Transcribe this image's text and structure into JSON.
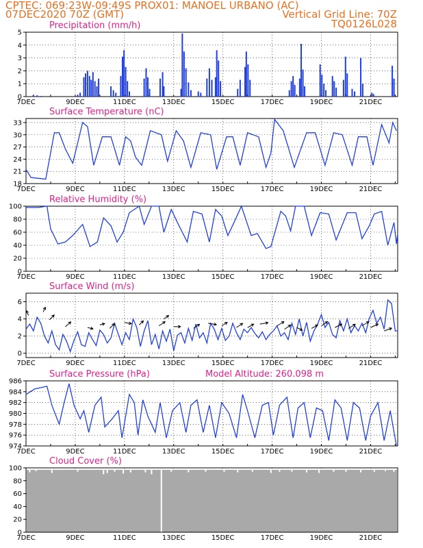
{
  "header": {
    "line1": "CPTEC:   069:23W-09:49S   PROX01: MANOEL URBANO (AC)",
    "line2_left": "07DEC2020 70Z (GMT)",
    "line2_right": "Vertical Grid Line: 70Z",
    "line3_right": "TQ0126L028"
  },
  "colors": {
    "header": "#e87020",
    "title": "#e0208a",
    "series": "#1f3fe0",
    "cloud": "#a9a9a9",
    "grid": "#000000"
  },
  "x_tick_labels": [
    "7DEC",
    "9DEC",
    "11DEC",
    "13DEC",
    "15DEC",
    "17DEC",
    "19DEC",
    "21DEC"
  ],
  "x_tick_days": [
    7,
    9,
    11,
    13,
    15,
    17,
    19,
    21
  ],
  "x_range_days": [
    7,
    22.1
  ],
  "chart_data": [
    {
      "type": "bar",
      "title": "Precipitation (mm/h)",
      "ylim": [
        0,
        5
      ],
      "yticks": [
        0,
        1,
        2,
        3,
        4,
        5
      ],
      "bars": [
        [
          7.3,
          0.15
        ],
        [
          7.45,
          0.1
        ],
        [
          7.6,
          0.05
        ],
        [
          9.1,
          0.15
        ],
        [
          9.2,
          0.3
        ],
        [
          9.35,
          1.5
        ],
        [
          9.42,
          1.8
        ],
        [
          9.5,
          2.0
        ],
        [
          9.58,
          1.6
        ],
        [
          9.65,
          1.3
        ],
        [
          9.72,
          1.9
        ],
        [
          9.8,
          1.2
        ],
        [
          9.88,
          0.8
        ],
        [
          9.95,
          1.4
        ],
        [
          10.45,
          0.8
        ],
        [
          10.55,
          0.5
        ],
        [
          10.65,
          0.3
        ],
        [
          10.85,
          1.6
        ],
        [
          10.92,
          3.1
        ],
        [
          10.98,
          3.6
        ],
        [
          11.05,
          2.3
        ],
        [
          11.12,
          1.2
        ],
        [
          11.2,
          0.4
        ],
        [
          11.8,
          1.4
        ],
        [
          11.88,
          2.2
        ],
        [
          11.95,
          1.5
        ],
        [
          12.02,
          0.6
        ],
        [
          12.45,
          1.4
        ],
        [
          12.55,
          1.9
        ],
        [
          12.6,
          0.8
        ],
        [
          13.3,
          0.6
        ],
        [
          13.35,
          4.9
        ],
        [
          13.42,
          3.5
        ],
        [
          13.5,
          2.2
        ],
        [
          13.6,
          1.1
        ],
        [
          13.7,
          0.5
        ],
        [
          14.0,
          0.4
        ],
        [
          14.1,
          0.3
        ],
        [
          14.35,
          1.4
        ],
        [
          14.45,
          2.2
        ],
        [
          14.55,
          1.3
        ],
        [
          14.7,
          1.5
        ],
        [
          14.75,
          3.6
        ],
        [
          14.82,
          2.8
        ],
        [
          14.9,
          1.2
        ],
        [
          15.6,
          0.6
        ],
        [
          15.7,
          1.3
        ],
        [
          15.9,
          2.3
        ],
        [
          15.95,
          3.5
        ],
        [
          16.02,
          2.5
        ],
        [
          16.1,
          1.3
        ],
        [
          17.7,
          0.5
        ],
        [
          17.78,
          1.2
        ],
        [
          17.85,
          1.6
        ],
        [
          17.92,
          0.9
        ],
        [
          18.12,
          1.4
        ],
        [
          18.18,
          4.1
        ],
        [
          18.25,
          2.1
        ],
        [
          18.32,
          0.8
        ],
        [
          18.95,
          2.5
        ],
        [
          19.02,
          1.7
        ],
        [
          19.1,
          1.0
        ],
        [
          19.18,
          0.5
        ],
        [
          19.45,
          1.6
        ],
        [
          19.52,
          1.2
        ],
        [
          19.6,
          0.7
        ],
        [
          19.9,
          1.3
        ],
        [
          19.98,
          3.1
        ],
        [
          20.05,
          1.8
        ],
        [
          20.25,
          0.6
        ],
        [
          20.35,
          0.4
        ],
        [
          20.6,
          3.0
        ],
        [
          20.68,
          1.0
        ],
        [
          21.05,
          0.3
        ],
        [
          21.12,
          0.2
        ],
        [
          21.88,
          2.4
        ],
        [
          21.95,
          1.4
        ]
      ]
    },
    {
      "type": "line",
      "title": "Surface Temperature (nC)",
      "ylim": [
        18,
        34
      ],
      "yticks": [
        18,
        21,
        24,
        27,
        30,
        33
      ],
      "x": [
        7,
        7.2,
        7.5,
        7.8,
        8.15,
        8.35,
        8.6,
        8.9,
        9.3,
        9.5,
        9.75,
        10.1,
        10.45,
        10.8,
        11.05,
        11.25,
        11.45,
        11.7,
        12.05,
        12.5,
        12.75,
        13.1,
        13.4,
        13.7,
        14.1,
        14.5,
        14.75,
        15.15,
        15.4,
        15.7,
        16.0,
        16.45,
        16.75,
        16.95,
        17.1,
        17.45,
        17.9,
        18.4,
        18.75,
        19.15,
        19.5,
        19.85,
        20.25,
        20.5,
        20.85,
        21.1,
        21.45,
        21.75,
        21.9,
        22.05
      ],
      "y": [
        21.5,
        19.5,
        19.3,
        19.1,
        30.5,
        30.5,
        26.5,
        23.0,
        33.0,
        32.0,
        22.5,
        29.5,
        29.5,
        22.5,
        29.5,
        28.5,
        24.5,
        22.5,
        31.0,
        30.0,
        23.5,
        31.0,
        28.5,
        22.0,
        30.5,
        30.0,
        21.5,
        29.5,
        29.5,
        22.5,
        30.5,
        29.5,
        22.0,
        25.5,
        33.8,
        31.0,
        22.0,
        30.5,
        30.5,
        22.5,
        30.5,
        30.0,
        22.5,
        29.5,
        29.5,
        22.5,
        32.5,
        28.0,
        33.0,
        31.0
      ]
    },
    {
      "type": "line",
      "title": "Relative Humidity (%)",
      "ylim": [
        0,
        100
      ],
      "yticks": [
        0,
        20,
        40,
        60,
        80,
        100
      ],
      "x": [
        7,
        7.5,
        7.85,
        8.0,
        8.3,
        8.6,
        8.9,
        9.3,
        9.6,
        9.9,
        10.15,
        10.45,
        10.7,
        10.95,
        11.2,
        11.6,
        11.8,
        12.1,
        12.4,
        12.6,
        12.9,
        13.15,
        13.55,
        13.8,
        14.15,
        14.45,
        14.7,
        14.95,
        15.2,
        15.45,
        15.75,
        16.15,
        16.4,
        16.75,
        16.95,
        17.35,
        17.55,
        17.75,
        17.95,
        18.3,
        18.6,
        18.95,
        19.3,
        19.6,
        20.05,
        20.4,
        20.65,
        20.95,
        21.15,
        21.45,
        21.7,
        21.95,
        22.05,
        22.1
      ],
      "y": [
        98,
        98,
        100,
        65,
        42,
        45,
        55,
        72,
        38,
        45,
        82,
        70,
        45,
        60,
        90,
        100,
        72,
        100,
        100,
        60,
        95,
        75,
        45,
        92,
        88,
        45,
        95,
        85,
        55,
        75,
        100,
        55,
        58,
        35,
        38,
        92,
        85,
        62,
        100,
        100,
        55,
        90,
        88,
        48,
        90,
        90,
        50,
        70,
        88,
        92,
        40,
        75,
        42,
        58
      ]
    },
    {
      "type": "line",
      "title": "Surface Wind (m/s)",
      "ylim": [
        -0.5,
        7
      ],
      "yticks": [
        0,
        2,
        4,
        6
      ],
      "x": [
        7,
        7.15,
        7.3,
        7.45,
        7.6,
        7.75,
        7.9,
        8.05,
        8.2,
        8.35,
        8.5,
        8.65,
        8.8,
        8.95,
        9.1,
        9.25,
        9.4,
        9.55,
        9.7,
        9.85,
        10.0,
        10.15,
        10.3,
        10.45,
        10.6,
        10.75,
        10.9,
        11.05,
        11.2,
        11.35,
        11.5,
        11.65,
        11.8,
        11.95,
        12.1,
        12.25,
        12.4,
        12.55,
        12.7,
        12.85,
        13.0,
        13.15,
        13.3,
        13.45,
        13.6,
        13.75,
        13.9,
        14.05,
        14.2,
        14.35,
        14.5,
        14.65,
        14.8,
        14.95,
        15.1,
        15.25,
        15.4,
        15.55,
        15.7,
        15.85,
        16.0,
        16.15,
        16.3,
        16.45,
        16.6,
        16.75,
        16.9,
        17.05,
        17.2,
        17.35,
        17.5,
        17.65,
        17.8,
        17.95,
        18.1,
        18.25,
        18.4,
        18.55,
        18.7,
        18.85,
        19.0,
        19.15,
        19.3,
        19.45,
        19.6,
        19.75,
        19.9,
        20.05,
        20.2,
        20.35,
        20.5,
        20.65,
        20.8,
        20.95,
        21.1,
        21.25,
        21.4,
        21.55,
        21.7,
        21.85,
        22.0,
        22.1
      ],
      "y": [
        2.8,
        3.4,
        2.6,
        4.2,
        3.5,
        2.0,
        1.2,
        2.6,
        1.0,
        0.4,
        2.2,
        1.4,
        0.2,
        1.5,
        2.5,
        1.0,
        0.8,
        2.4,
        1.6,
        0.9,
        2.7,
        2.2,
        1.2,
        1.8,
        3.5,
        2.2,
        1.0,
        2.4,
        1.6,
        4.0,
        3.0,
        0.8,
        2.6,
        3.8,
        1.0,
        2.2,
        0.5,
        2.6,
        1.4,
        2.8,
        0.3,
        2.1,
        2.4,
        1.2,
        2.9,
        1.5,
        3.4,
        1.8,
        2.4,
        1.2,
        3.5,
        2.8,
        1.6,
        2.9,
        1.5,
        2.0,
        3.5,
        2.4,
        1.6,
        2.8,
        2.4,
        3.0,
        2.3,
        1.8,
        2.5,
        1.6,
        2.2,
        2.6,
        3.2,
        2.0,
        2.4,
        1.6,
        3.5,
        2.2,
        4.0,
        2.0,
        3.6,
        1.4,
        2.6,
        3.4,
        4.5,
        3.0,
        3.6,
        2.2,
        1.8,
        3.8,
        2.6,
        4.0,
        2.4,
        3.2,
        2.6,
        3.5,
        2.4,
        4.1,
        5.0,
        3.5,
        4.2,
        2.8,
        6.2,
        5.8,
        2.6,
        2.6
      ],
      "arrows": [
        [
          7.1,
          4.4,
          -3,
          7
        ],
        [
          7.7,
          4.8,
          3,
          7
        ],
        [
          7.95,
          3.9,
          7,
          7
        ],
        [
          8.6,
          3.1,
          8,
          7
        ],
        [
          9.5,
          3.0,
          8,
          -2
        ],
        [
          10.0,
          3.3,
          7,
          2
        ],
        [
          10.4,
          2.9,
          7,
          7
        ],
        [
          11.0,
          3.6,
          10,
          -2
        ],
        [
          11.6,
          3.3,
          6,
          6
        ],
        [
          12.4,
          3.2,
          9,
          6
        ],
        [
          12.6,
          4.0,
          7,
          5
        ],
        [
          13.0,
          3.1,
          10,
          0
        ],
        [
          13.8,
          2.9,
          9,
          6
        ],
        [
          14.4,
          3.5,
          12,
          -2
        ],
        [
          14.95,
          3.2,
          8,
          5
        ],
        [
          15.55,
          3.0,
          9,
          6
        ],
        [
          16.0,
          3.0,
          9,
          5
        ],
        [
          16.5,
          3.4,
          12,
          2
        ],
        [
          17.2,
          3.2,
          10,
          6
        ],
        [
          17.5,
          2.8,
          9,
          6
        ],
        [
          18.0,
          3.0,
          8,
          -4
        ],
        [
          18.6,
          2.9,
          9,
          5
        ],
        [
          19.0,
          3.2,
          9,
          6
        ],
        [
          19.55,
          3.0,
          10,
          5
        ],
        [
          20.1,
          2.9,
          10,
          6
        ],
        [
          20.65,
          3.2,
          10,
          6
        ],
        [
          21.0,
          3.0,
          11,
          5
        ],
        [
          21.55,
          2.6,
          11,
          4
        ]
      ]
    },
    {
      "type": "line",
      "title": "Surface Pressure (hPa)",
      "annotation": "Model Altitude: 260.098 m",
      "ylim": [
        974,
        986
      ],
      "yticks": [
        974,
        976,
        978,
        980,
        982,
        984,
        986
      ],
      "x": [
        7,
        7.35,
        7.85,
        8.05,
        8.35,
        8.55,
        8.75,
        8.95,
        9.2,
        9.35,
        9.55,
        9.8,
        10.05,
        10.2,
        10.5,
        10.75,
        10.9,
        11.2,
        11.4,
        11.55,
        11.75,
        11.95,
        12.25,
        12.45,
        12.7,
        12.95,
        13.25,
        13.5,
        13.7,
        13.95,
        14.2,
        14.45,
        14.7,
        14.95,
        15.25,
        15.55,
        15.8,
        16.0,
        16.3,
        16.6,
        16.85,
        17.05,
        17.3,
        17.6,
        17.85,
        18.05,
        18.3,
        18.55,
        18.8,
        19.05,
        19.3,
        19.55,
        19.8,
        20.05,
        20.3,
        20.55,
        20.8,
        21.0,
        21.3,
        21.55,
        21.8,
        22.05
      ],
      "y": [
        983.5,
        984.5,
        985.0,
        981.5,
        978.0,
        982.0,
        985.5,
        981.5,
        979.0,
        980.5,
        976.5,
        981.5,
        983.0,
        977.5,
        979.0,
        980.5,
        975.5,
        983.5,
        982.0,
        976.0,
        982.5,
        979.5,
        976.5,
        982.0,
        975.5,
        980.5,
        982.0,
        976.5,
        981.5,
        982.5,
        976.5,
        981.5,
        975.5,
        982.0,
        980.0,
        975.5,
        983.5,
        980.5,
        975.5,
        981.5,
        982.0,
        976.0,
        981.5,
        983.0,
        975.5,
        981.0,
        982.0,
        975.5,
        981.0,
        980.5,
        975.0,
        982.5,
        981.0,
        975.0,
        982.0,
        981.0,
        975.0,
        979.5,
        982.0,
        975.0,
        980.5,
        974.0
      ]
    },
    {
      "type": "bar",
      "title": "Cloud Cover (%)",
      "ylim": [
        0,
        100
      ],
      "yticks": [
        0,
        20,
        40,
        60,
        80,
        100
      ],
      "fill_default": 97,
      "dips": [
        [
          7.15,
          93
        ],
        [
          7.4,
          95
        ],
        [
          8.05,
          92
        ],
        [
          9.1,
          94
        ],
        [
          10.15,
          90
        ],
        [
          10.3,
          92
        ],
        [
          10.6,
          94
        ],
        [
          10.95,
          91
        ],
        [
          11.25,
          93
        ],
        [
          11.85,
          93
        ],
        [
          12.1,
          90
        ],
        [
          12.5,
          0
        ],
        [
          12.9,
          94
        ],
        [
          13.6,
          93
        ],
        [
          14.3,
          94
        ],
        [
          15.05,
          94
        ],
        [
          15.6,
          93
        ],
        [
          16.2,
          94
        ],
        [
          16.95,
          92
        ],
        [
          17.3,
          94
        ],
        [
          17.8,
          94
        ],
        [
          18.4,
          93
        ],
        [
          18.9,
          92
        ],
        [
          19.5,
          94
        ],
        [
          20.0,
          94
        ],
        [
          20.6,
          93
        ],
        [
          21.15,
          94
        ],
        [
          21.6,
          95
        ],
        [
          21.95,
          94
        ]
      ]
    }
  ]
}
